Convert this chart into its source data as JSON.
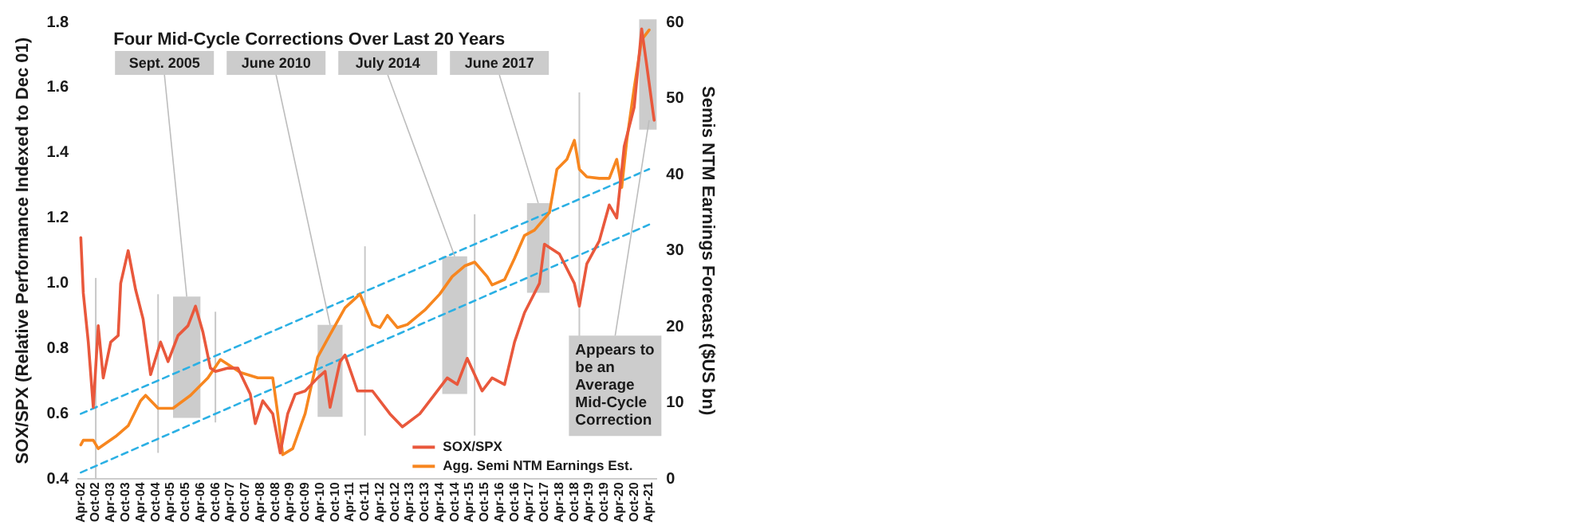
{
  "chart_data": {
    "type": "line",
    "title": "Four Mid-Cycle Corrections Over Last 20 Years",
    "ylabel": "SOX/SPX (Relative Performance Indexed to Dec 01)",
    "y2label": "Semis NTM Earnings Forecast ($US bn)",
    "series": [
      {
        "name": "SOX/SPX",
        "color": "#e9583c",
        "x": [
          "2002-04",
          "2002-05",
          "2002-07",
          "2002-09",
          "2002-11",
          "2003-01",
          "2003-04",
          "2003-07",
          "2003-08",
          "2003-11",
          "2004-02",
          "2004-05",
          "2004-08",
          "2004-12",
          "2005-03",
          "2005-07",
          "2005-11",
          "2006-02",
          "2006-05",
          "2006-08",
          "2006-10",
          "2007-03",
          "2007-07",
          "2007-12",
          "2008-02",
          "2008-05",
          "2008-09",
          "2008-12",
          "2009-03",
          "2009-06",
          "2009-10",
          "2010-03",
          "2010-06",
          "2010-08",
          "2010-12",
          "2011-02",
          "2011-07",
          "2012-01",
          "2012-08",
          "2013-01",
          "2013-08",
          "2014-02",
          "2014-07",
          "2014-11",
          "2015-03",
          "2015-09",
          "2016-01",
          "2016-06",
          "2016-10",
          "2017-02",
          "2017-08",
          "2017-10",
          "2018-04",
          "2018-10",
          "2018-12",
          "2019-03",
          "2019-08",
          "2019-12",
          "2020-03",
          "2020-06",
          "2020-10",
          "2021-01",
          "2021-03",
          "2021-06"
        ],
        "values": [
          1.14,
          0.97,
          0.82,
          0.62,
          0.87,
          0.71,
          0.82,
          0.84,
          1.0,
          1.1,
          0.98,
          0.89,
          0.72,
          0.82,
          0.76,
          0.84,
          0.87,
          0.93,
          0.85,
          0.74,
          0.73,
          0.74,
          0.74,
          0.66,
          0.57,
          0.64,
          0.6,
          0.48,
          0.6,
          0.66,
          0.67,
          0.71,
          0.73,
          0.62,
          0.76,
          0.78,
          0.67,
          0.67,
          0.6,
          0.56,
          0.6,
          0.66,
          0.71,
          0.69,
          0.77,
          0.67,
          0.71,
          0.69,
          0.82,
          0.91,
          1.0,
          1.12,
          1.09,
          1.0,
          0.93,
          1.06,
          1.13,
          1.24,
          1.2,
          1.42,
          1.54,
          1.78,
          1.67,
          1.5
        ]
      },
      {
        "name": "Agg. Semi NTM Earnings Est.",
        "color": "#f7861f",
        "axis": "y2",
        "x": [
          "2002-04",
          "2002-05",
          "2002-09",
          "2002-11",
          "2003-06",
          "2003-11",
          "2004-04",
          "2004-06",
          "2004-11",
          "2005-05",
          "2005-12",
          "2006-07",
          "2006-12",
          "2007-08",
          "2008-03",
          "2008-09",
          "2008-11",
          "2009-01",
          "2009-05",
          "2009-10",
          "2010-03",
          "2010-08",
          "2011-02",
          "2011-08",
          "2012-01",
          "2012-04",
          "2012-07",
          "2012-11",
          "2013-03",
          "2013-10",
          "2014-04",
          "2014-09",
          "2015-02",
          "2015-06",
          "2015-11",
          "2016-01",
          "2016-06",
          "2016-10",
          "2017-02",
          "2017-06",
          "2017-12",
          "2018-03",
          "2018-07",
          "2018-10",
          "2018-12",
          "2019-03",
          "2019-08",
          "2019-12",
          "2020-03",
          "2020-05",
          "2020-07",
          "2020-10",
          "2021-01",
          "2021-04"
        ],
        "values": [
          4.5,
          5.1,
          5.1,
          4,
          5.6,
          7,
          10.3,
          11,
          9.3,
          9.3,
          11,
          13.3,
          15.7,
          14,
          13.3,
          13.3,
          8.6,
          3.2,
          4,
          8.6,
          16,
          19,
          22.5,
          24.3,
          20.3,
          19.9,
          21.5,
          19.9,
          20.3,
          22.2,
          24.3,
          26.6,
          28,
          28.5,
          26.6,
          25.5,
          26.2,
          29,
          32,
          32.7,
          35,
          40.7,
          42,
          44.5,
          40.7,
          39.7,
          39.5,
          39.5,
          42,
          38.3,
          44.4,
          51.4,
          57.7,
          59
        ]
      },
      {
        "type": "line",
        "color": "#2bb0e4",
        "line_style": "dashed",
        "x": [
          "2002-04",
          "2021-04"
        ],
        "values": [
          0.6,
          1.35
        ]
      },
      {
        "type": "line",
        "color": "#2bb0e4",
        "line_style": "dashed",
        "x": [
          "2002-04",
          "2021-04"
        ],
        "values": [
          0.42,
          1.18
        ]
      }
    ],
    "bands": [
      {
        "axis": "x",
        "from": "2005-05",
        "to": "2006-04",
        "label": "Sept. 2005",
        "color": "#cccccc"
      },
      {
        "axis": "x",
        "from": "2010-03",
        "to": "2011-01",
        "label": "June 2010",
        "color": "#cccccc"
      },
      {
        "axis": "x",
        "from": "2014-05",
        "to": "2015-03",
        "label": "July 2014",
        "color": "#cccccc"
      },
      {
        "axis": "x",
        "from": "2017-03",
        "to": "2017-12",
        "label": "June 2017",
        "color": "#cccccc"
      },
      {
        "axis": "x",
        "from": "2020-12",
        "to": "2021-07",
        "color": "#cccccc"
      }
    ],
    "ref_lines": [
      {
        "axis": "x",
        "value": "2002-10",
        "color": "#c8c8c8"
      },
      {
        "axis": "x",
        "value": "2004-11",
        "color": "#c8c8c8"
      },
      {
        "axis": "x",
        "value": "2006-10",
        "color": "#c8c8c8"
      },
      {
        "axis": "x",
        "value": "2011-10",
        "color": "#c8c8c8"
      },
      {
        "axis": "x",
        "value": "2015-06",
        "color": "#c8c8c8"
      },
      {
        "axis": "x",
        "value": "2018-12",
        "color": "#c8c8c8"
      }
    ],
    "annotations": [
      {
        "text": "Appears to be an Average Mid-Cycle Correction",
        "x": "2021-04",
        "y": 1.5
      }
    ],
    "xlim": [
      "2002-03",
      "2021-07"
    ],
    "xticks": [
      {
        "value": "2002-04",
        "label": "Apr-02"
      },
      {
        "value": "2002-10",
        "label": "Oct-02"
      },
      {
        "value": "2003-04",
        "label": "Apr-03"
      },
      {
        "value": "2003-10",
        "label": "Oct-03"
      },
      {
        "value": "2004-04",
        "label": "Apr-04"
      },
      {
        "value": "2004-10",
        "label": "Oct-04"
      },
      {
        "value": "2005-04",
        "label": "Apr-05"
      },
      {
        "value": "2005-10",
        "label": "Oct-05"
      },
      {
        "value": "2006-04",
        "label": "Apr-06"
      },
      {
        "value": "2006-10",
        "label": "Oct-06"
      },
      {
        "value": "2007-04",
        "label": "Apr-07"
      },
      {
        "value": "2007-10",
        "label": "Oct-07"
      },
      {
        "value": "2008-04",
        "label": "Apr-08"
      },
      {
        "value": "2008-10",
        "label": "Oct-08"
      },
      {
        "value": "2009-04",
        "label": "Apr-09"
      },
      {
        "value": "2009-10",
        "label": "Oct-09"
      },
      {
        "value": "2010-04",
        "label": "Apr-10"
      },
      {
        "value": "2010-10",
        "label": "Oct-10"
      },
      {
        "value": "2011-04",
        "label": "Apr-11"
      },
      {
        "value": "2011-10",
        "label": "Oct-11"
      },
      {
        "value": "2012-04",
        "label": "Apr-12"
      },
      {
        "value": "2012-10",
        "label": "Oct-12"
      },
      {
        "value": "2013-04",
        "label": "Apr-13"
      },
      {
        "value": "2013-10",
        "label": "Oct-13"
      },
      {
        "value": "2014-04",
        "label": "Apr-14"
      },
      {
        "value": "2014-10",
        "label": "Oct-14"
      },
      {
        "value": "2015-04",
        "label": "Apr-15"
      },
      {
        "value": "2015-10",
        "label": "Oct-15"
      },
      {
        "value": "2016-04",
        "label": "Apr-16"
      },
      {
        "value": "2016-10",
        "label": "Oct-16"
      },
      {
        "value": "2017-04",
        "label": "Apr-17"
      },
      {
        "value": "2017-10",
        "label": "Oct-17"
      },
      {
        "value": "2018-04",
        "label": "Apr-18"
      },
      {
        "value": "2018-10",
        "label": "Oct-18"
      },
      {
        "value": "2019-04",
        "label": "Apr-19"
      },
      {
        "value": "2019-10",
        "label": "Oct-19"
      },
      {
        "value": "2020-04",
        "label": "Apr-20"
      },
      {
        "value": "2020-10",
        "label": "Oct-20"
      },
      {
        "value": "2021-04",
        "label": "Apr-21"
      }
    ],
    "ylim": [
      0.4,
      1.8
    ],
    "yticks": [
      0.4,
      0.6,
      0.8,
      {
        "value": 1,
        "label": "1.0"
      },
      1.2,
      1.4,
      1.6,
      1.8
    ],
    "y2lim": [
      0,
      60
    ],
    "y2ticks": [
      0,
      10,
      20,
      30,
      40,
      50,
      60
    ],
    "grid": false,
    "legend": "bottom right",
    "marker": "none"
  }
}
